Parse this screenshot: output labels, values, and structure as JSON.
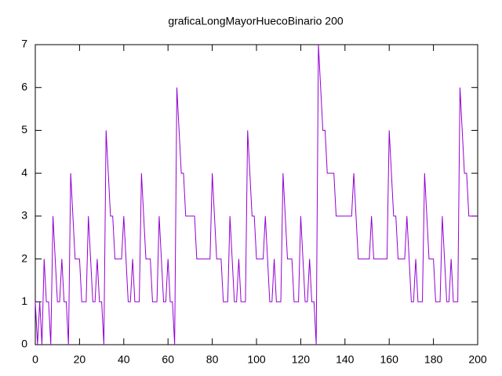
{
  "chart_data": {
    "type": "line",
    "title": "graficaLongMayorHuecoBinario 200",
    "color": "#9400d3",
    "x": [
      0,
      1,
      2,
      3,
      4,
      5,
      6,
      7,
      8,
      9,
      10,
      11,
      12,
      13,
      14,
      15,
      16,
      17,
      18,
      19,
      20,
      21,
      22,
      23,
      24,
      25,
      26,
      27,
      28,
      29,
      30,
      31,
      32,
      33,
      34,
      35,
      36,
      37,
      38,
      39,
      40,
      41,
      42,
      43,
      44,
      45,
      46,
      47,
      48,
      49,
      50,
      51,
      52,
      53,
      54,
      55,
      56,
      57,
      58,
      59,
      60,
      61,
      62,
      63,
      64,
      65,
      66,
      67,
      68,
      69,
      70,
      71,
      72,
      73,
      74,
      75,
      76,
      77,
      78,
      79,
      80,
      81,
      82,
      83,
      84,
      85,
      86,
      87,
      88,
      89,
      90,
      91,
      92,
      93,
      94,
      95,
      96,
      97,
      98,
      99,
      100,
      101,
      102,
      103,
      104,
      105,
      106,
      107,
      108,
      109,
      110,
      111,
      112,
      113,
      114,
      115,
      116,
      117,
      118,
      119,
      120,
      121,
      122,
      123,
      124,
      125,
      126,
      127,
      128,
      129,
      130,
      131,
      132,
      133,
      134,
      135,
      136,
      137,
      138,
      139,
      140,
      141,
      142,
      143,
      144,
      145,
      146,
      147,
      148,
      149,
      150,
      151,
      152,
      153,
      154,
      155,
      156,
      157,
      158,
      159,
      160,
      161,
      162,
      163,
      164,
      165,
      166,
      167,
      168,
      169,
      170,
      171,
      172,
      173,
      174,
      175,
      176,
      177,
      178,
      179,
      180,
      181,
      182,
      183,
      184,
      185,
      186,
      187,
      188,
      189,
      190,
      191,
      192,
      193,
      194,
      195,
      196,
      197,
      198,
      199,
      200
    ],
    "values": [
      1,
      0,
      1,
      0,
      2,
      1,
      1,
      0,
      3,
      2,
      1,
      1,
      2,
      1,
      1,
      0,
      4,
      3,
      2,
      2,
      2,
      1,
      1,
      1,
      3,
      2,
      1,
      1,
      2,
      1,
      1,
      0,
      5,
      4,
      3,
      3,
      2,
      2,
      2,
      2,
      3,
      2,
      1,
      1,
      2,
      1,
      1,
      1,
      4,
      3,
      2,
      2,
      2,
      1,
      1,
      1,
      3,
      2,
      1,
      1,
      2,
      1,
      1,
      0,
      6,
      5,
      4,
      4,
      3,
      3,
      3,
      3,
      3,
      2,
      2,
      2,
      2,
      2,
      2,
      2,
      4,
      3,
      2,
      2,
      2,
      1,
      1,
      1,
      3,
      2,
      1,
      1,
      2,
      1,
      1,
      1,
      5,
      4,
      3,
      3,
      2,
      2,
      2,
      2,
      3,
      2,
      1,
      1,
      2,
      1,
      1,
      1,
      4,
      3,
      2,
      2,
      2,
      1,
      1,
      1,
      3,
      2,
      1,
      1,
      2,
      1,
      1,
      0,
      7,
      6,
      5,
      5,
      4,
      4,
      4,
      4,
      3,
      3,
      3,
      3,
      3,
      3,
      3,
      3,
      4,
      3,
      2,
      2,
      2,
      2,
      2,
      2,
      3,
      2,
      2,
      2,
      2,
      2,
      2,
      2,
      5,
      4,
      3,
      3,
      2,
      2,
      2,
      2,
      3,
      2,
      1,
      1,
      2,
      1,
      1,
      1,
      4,
      3,
      2,
      2,
      2,
      1,
      1,
      1,
      3,
      2,
      1,
      1,
      2,
      1,
      1,
      1,
      6,
      5,
      4,
      4,
      3,
      3,
      3,
      3,
      3
    ],
    "xlim": [
      0,
      200
    ],
    "xticks": [
      0,
      20,
      40,
      60,
      80,
      100,
      120,
      140,
      160,
      180,
      200
    ],
    "ylim": [
      0,
      7
    ],
    "yticks": [
      0,
      1,
      2,
      3,
      4,
      5,
      6,
      7
    ]
  }
}
